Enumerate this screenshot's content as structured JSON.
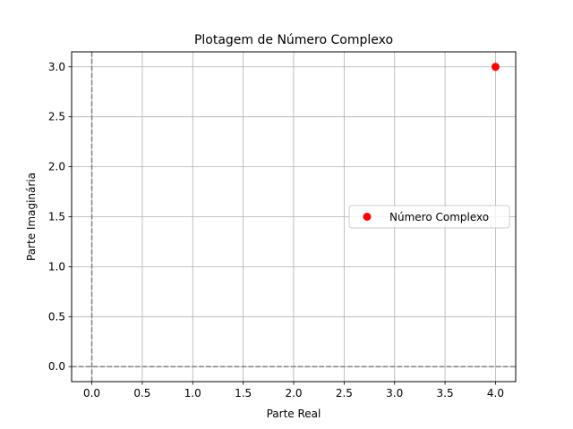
{
  "chart_data": {
    "type": "scatter",
    "title": "Plotagem de Número Complexo",
    "xlabel": "Parte Real",
    "ylabel": "Parte Imaginária",
    "xlim": [
      -0.2,
      4.2
    ],
    "ylim": [
      -0.15,
      3.15
    ],
    "xticks": [
      0.0,
      0.5,
      1.0,
      1.5,
      2.0,
      2.5,
      3.0,
      3.5,
      4.0
    ],
    "yticks": [
      0.0,
      0.5,
      1.0,
      1.5,
      2.0,
      2.5,
      3.0
    ],
    "xtick_labels": [
      "0.0",
      "0.5",
      "1.0",
      "1.5",
      "2.0",
      "2.5",
      "3.0",
      "3.5",
      "4.0"
    ],
    "ytick_labels": [
      "0.0",
      "0.5",
      "1.0",
      "1.5",
      "2.0",
      "2.5",
      "3.0"
    ],
    "grid": true,
    "reference_lines": [
      {
        "orientation": "horizontal",
        "value": 0,
        "style": "dashed",
        "color": "#808080"
      },
      {
        "orientation": "vertical",
        "value": 0,
        "style": "dashed",
        "color": "#808080"
      }
    ],
    "series": [
      {
        "name": "Número Complexo",
        "color": "#ff0000",
        "points": [
          {
            "x": 4,
            "y": 3
          }
        ]
      }
    ],
    "legend": {
      "position": "center-right"
    }
  }
}
